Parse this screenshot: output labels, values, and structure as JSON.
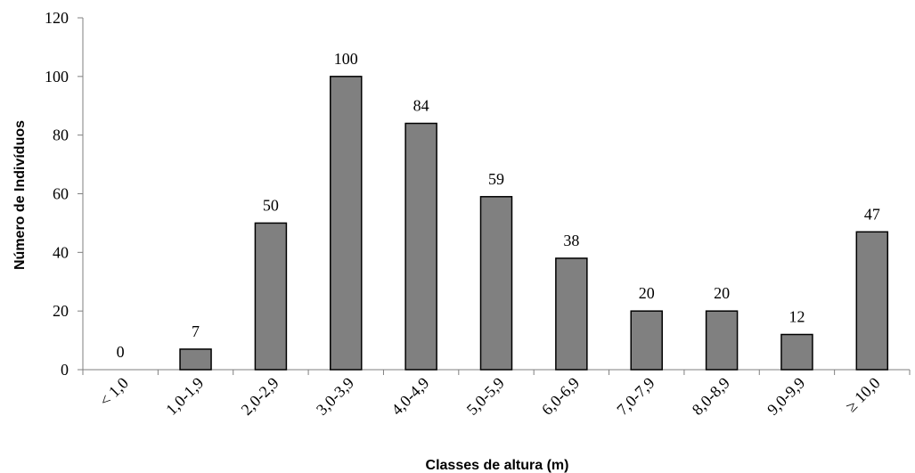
{
  "chart_data": {
    "type": "bar",
    "xlabel": "Classes de altura (m)",
    "ylabel": "Número de Indivíduos",
    "categories": [
      "< 1,0",
      "1,0-1,9",
      "2,0-2,9",
      "3,0-3,9",
      "4,0-4,9",
      "5,0-5,9",
      "6,0-6,9",
      "7,0-7,9",
      "8,0-8,9",
      "9,0-9,9",
      "≥ 10,0"
    ],
    "values": [
      0,
      7,
      50,
      100,
      84,
      59,
      38,
      20,
      20,
      12,
      47
    ],
    "data_labels": [
      "0",
      "7",
      "50",
      "100",
      "84",
      "59",
      "38",
      "20",
      "20",
      "12",
      "47"
    ],
    "y_ticks": [
      "0",
      "20",
      "40",
      "60",
      "80",
      "100",
      "120"
    ],
    "ylim": [
      0,
      120
    ],
    "grid": false,
    "legend": "none",
    "bar_color": "#808080",
    "bar_edge_color": "#000000"
  }
}
